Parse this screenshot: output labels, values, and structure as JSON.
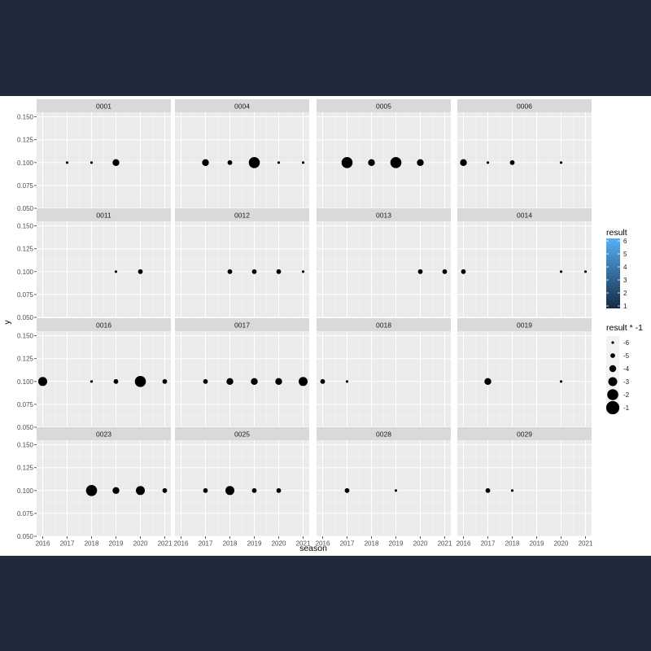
{
  "chart_data": {
    "type": "scatter",
    "facet_variable": "panel",
    "x": [
      2016,
      2017,
      2018,
      2019,
      2020,
      2021
    ],
    "xlabel": "season",
    "ylabel": "y",
    "xlim": [
      2015.75,
      2021.25
    ],
    "ylim": [
      0.05,
      0.155
    ],
    "y_ticks": [
      "0.050",
      "0.075",
      "0.100",
      "0.125",
      "0.150"
    ],
    "y_tick_values": [
      0.05,
      0.075,
      0.1,
      0.125,
      0.15
    ],
    "x_ticks": [
      "2016",
      "2017",
      "2018",
      "2019",
      "2020",
      "2021"
    ],
    "grid": true,
    "legend_position": "right",
    "color_legend": {
      "title": "result",
      "labels": [
        "1",
        "2",
        "3",
        "4",
        "5",
        "6"
      ],
      "low_color": "#132b43",
      "high_color": "#56b1f7"
    },
    "size_legend": {
      "title": "result * -1",
      "labels": [
        "-6",
        "-5",
        "-4",
        "-3",
        "-2",
        "-1"
      ],
      "values": [
        -6,
        -5,
        -4,
        -3,
        -2,
        -1
      ]
    },
    "point_color": "#000000",
    "panels": [
      {
        "title": "0001",
        "points": [
          [
            2017,
            0.1,
            -6
          ],
          [
            2018,
            0.1,
            -6
          ],
          [
            2019,
            0.1,
            -4
          ]
        ]
      },
      {
        "title": "0004",
        "points": [
          [
            2017,
            0.1,
            -4
          ],
          [
            2018,
            0.1,
            -5
          ],
          [
            2019,
            0.1,
            -2
          ],
          [
            2020,
            0.1,
            -6
          ],
          [
            2021,
            0.1,
            -6
          ]
        ]
      },
      {
        "title": "0005",
        "points": [
          [
            2017,
            0.1,
            -2
          ],
          [
            2018,
            0.1,
            -4
          ],
          [
            2019,
            0.1,
            -2
          ],
          [
            2020,
            0.1,
            -4
          ]
        ]
      },
      {
        "title": "0006",
        "points": [
          [
            2016,
            0.1,
            -4
          ],
          [
            2017,
            0.1,
            -6
          ],
          [
            2018,
            0.1,
            -5
          ],
          [
            2020,
            0.1,
            -6
          ]
        ]
      },
      {
        "title": "0011",
        "points": [
          [
            2019,
            0.1,
            -6
          ],
          [
            2020,
            0.1,
            -5
          ]
        ]
      },
      {
        "title": "0012",
        "points": [
          [
            2018,
            0.1,
            -5
          ],
          [
            2019,
            0.1,
            -5
          ],
          [
            2020,
            0.1,
            -5
          ],
          [
            2021,
            0.1,
            -6
          ]
        ]
      },
      {
        "title": "0013",
        "points": [
          [
            2020,
            0.1,
            -5
          ],
          [
            2021,
            0.1,
            -5
          ]
        ]
      },
      {
        "title": "0014",
        "points": [
          [
            2016,
            0.1,
            -5
          ],
          [
            2020,
            0.1,
            -6
          ],
          [
            2021,
            0.1,
            -6
          ]
        ]
      },
      {
        "title": "0016",
        "points": [
          [
            2016,
            0.1,
            -3
          ],
          [
            2018,
            0.1,
            -6
          ],
          [
            2019,
            0.1,
            -5
          ],
          [
            2020,
            0.1,
            -2
          ],
          [
            2021,
            0.1,
            -5
          ]
        ]
      },
      {
        "title": "0017",
        "points": [
          [
            2017,
            0.1,
            -5
          ],
          [
            2018,
            0.1,
            -4
          ],
          [
            2019,
            0.1,
            -4
          ],
          [
            2020,
            0.1,
            -4
          ],
          [
            2021,
            0.1,
            -3
          ]
        ]
      },
      {
        "title": "0018",
        "points": [
          [
            2016,
            0.1,
            -5
          ],
          [
            2017,
            0.1,
            -6
          ]
        ]
      },
      {
        "title": "0019",
        "points": [
          [
            2017,
            0.1,
            -4
          ],
          [
            2020,
            0.1,
            -6
          ]
        ]
      },
      {
        "title": "0023",
        "points": [
          [
            2018,
            0.1,
            -2
          ],
          [
            2019,
            0.1,
            -4
          ],
          [
            2020,
            0.1,
            -3
          ],
          [
            2021,
            0.1,
            -5
          ]
        ]
      },
      {
        "title": "0025",
        "points": [
          [
            2017,
            0.1,
            -5
          ],
          [
            2018,
            0.1,
            -3
          ],
          [
            2019,
            0.1,
            -5
          ],
          [
            2020,
            0.1,
            -5
          ]
        ]
      },
      {
        "title": "0028",
        "points": [
          [
            2017,
            0.1,
            -5
          ],
          [
            2019,
            0.1,
            -6
          ]
        ]
      },
      {
        "title": "0029",
        "points": [
          [
            2017,
            0.1,
            -5
          ],
          [
            2018,
            0.1,
            -6
          ]
        ]
      }
    ]
  }
}
